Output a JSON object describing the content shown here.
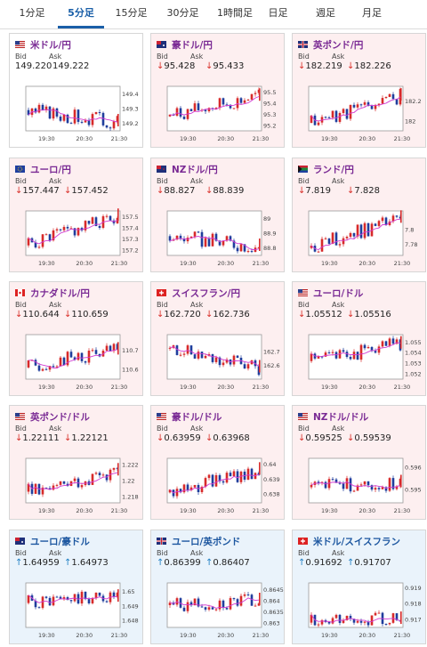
{
  "tabs": [
    "1分足",
    "5分足",
    "15分足",
    "30分足",
    "1時間足",
    "日足",
    "週足",
    "月足"
  ],
  "active_tab": 1,
  "labels": {
    "bid": "Bid",
    "ask": "Ask"
  },
  "colors": {
    "up_candle": "#d72a2a",
    "down_candle": "#1f3d9c",
    "ma_line": "#d23ad2",
    "down_bg": "#fdeff0",
    "up_bg": "#eaf3fb",
    "frame": "#9a9a9a"
  },
  "cards": [
    {
      "pair": "米ドル/円",
      "flag": "us-flag",
      "trend": "none",
      "bid": "149.220",
      "ask": "149.222",
      "chart_data": {
        "type": "candlestick",
        "x_ticks": [
          "19:30",
          "20:30",
          "21:30"
        ],
        "y_ticks": [
          "149.4",
          "149.3",
          "149.2"
        ],
        "ylim": [
          149.15,
          149.45
        ],
        "start": 149.29,
        "end": 149.21,
        "seed": 3
      }
    },
    {
      "pair": "豪ドル/円",
      "flag": "au-flag",
      "trend": "down",
      "bid": "95.428",
      "ask": "95.433",
      "chart_data": {
        "type": "candlestick",
        "x_ticks": [
          "19:30",
          "20:30",
          "21:30"
        ],
        "y_ticks": [
          "95.5",
          "95.4",
          "95.3",
          "95.2"
        ],
        "ylim": [
          95.15,
          95.55
        ],
        "start": 95.28,
        "end": 95.46,
        "seed": 7
      }
    },
    {
      "pair": "英ポンド/円",
      "flag": "gb-flag",
      "trend": "down",
      "bid": "182.219",
      "ask": "182.226",
      "chart_data": {
        "type": "candlestick",
        "x_ticks": [
          "19:30",
          "20:30",
          "21:30"
        ],
        "y_ticks": [
          "182.2",
          "182"
        ],
        "ylim": [
          181.9,
          182.35
        ],
        "start": 181.98,
        "end": 182.25,
        "seed": 11
      }
    },
    {
      "pair": "ユーロ/円",
      "flag": "eu-flag",
      "trend": "down",
      "bid": "157.447",
      "ask": "157.452",
      "chart_data": {
        "type": "candlestick",
        "x_ticks": [
          "19:30",
          "20:30",
          "21:30"
        ],
        "y_ticks": [
          "157.5",
          "157.4",
          "157.3",
          "157.2"
        ],
        "ylim": [
          157.15,
          157.55
        ],
        "start": 157.24,
        "end": 157.5,
        "seed": 5
      }
    },
    {
      "pair": "NZドル/円",
      "flag": "nz-flag",
      "trend": "down",
      "bid": "88.827",
      "ask": "88.839",
      "chart_data": {
        "type": "candlestick",
        "x_ticks": [
          "19:30",
          "20:30",
          "21:30"
        ],
        "y_ticks": [
          "89",
          "88.9",
          "88.8"
        ],
        "ylim": [
          88.75,
          89.05
        ],
        "start": 88.88,
        "end": 88.81,
        "seed": 9
      }
    },
    {
      "pair": "ランド/円",
      "flag": "za-flag",
      "trend": "down",
      "bid": "7.819",
      "ask": "7.828",
      "chart_data": {
        "type": "candlestick",
        "x_ticks": [
          "19:30",
          "20:30",
          "21:30"
        ],
        "y_ticks": [
          "7.8",
          "7.78"
        ],
        "ylim": [
          7.765,
          7.825
        ],
        "start": 7.775,
        "end": 7.815,
        "seed": 13
      }
    },
    {
      "pair": "カナダドル/円",
      "flag": "ca-flag",
      "trend": "down",
      "bid": "110.644",
      "ask": "110.659",
      "chart_data": {
        "type": "candlestick",
        "x_ticks": [
          "19:30",
          "20:30",
          "21:30"
        ],
        "y_ticks": [
          "110.7",
          "110.6"
        ],
        "ylim": [
          110.55,
          110.78
        ],
        "start": 110.61,
        "end": 110.7,
        "seed": 17
      }
    },
    {
      "pair": "スイスフラン/円",
      "flag": "ch-flag",
      "trend": "down",
      "bid": "162.720",
      "ask": "162.736",
      "chart_data": {
        "type": "candlestick",
        "x_ticks": [
          "19:30",
          "20:30",
          "21:30"
        ],
        "y_ticks": [
          "162.7",
          "162.6"
        ],
        "ylim": [
          162.5,
          162.82
        ],
        "start": 162.72,
        "end": 162.58,
        "seed": 19
      }
    },
    {
      "pair": "ユーロ/ドル",
      "flag": "eu-us-flag",
      "trend": "down",
      "bid": "1.05512",
      "ask": "1.05516",
      "chart_data": {
        "type": "candlestick",
        "x_ticks": [
          "19:30",
          "20:30",
          "21:30"
        ],
        "y_ticks": [
          "1.055",
          "1.054",
          "1.053",
          "1.052"
        ],
        "ylim": [
          1.0515,
          1.0557
        ],
        "start": 1.0532,
        "end": 1.0548,
        "seed": 23
      }
    },
    {
      "pair": "英ポンド/ドル",
      "flag": "gb-us-flag",
      "trend": "down",
      "bid": "1.22111",
      "ask": "1.22121",
      "chart_data": {
        "type": "candlestick",
        "x_ticks": [
          "19:30",
          "20:30",
          "21:30"
        ],
        "y_ticks": [
          "1.222",
          "1.22",
          "1.218"
        ],
        "ylim": [
          1.2172,
          1.2228
        ],
        "start": 1.2186,
        "end": 1.2212,
        "seed": 29
      }
    },
    {
      "pair": "豪ドル/ドル",
      "flag": "au-us-flag",
      "trend": "down",
      "bid": "0.63959",
      "ask": "0.63968",
      "chart_data": {
        "type": "candlestick",
        "x_ticks": [
          "19:30",
          "20:30",
          "21:30"
        ],
        "y_ticks": [
          "0.64",
          "0.639",
          "0.638"
        ],
        "ylim": [
          0.6374,
          0.6404
        ],
        "start": 0.6381,
        "end": 0.6396,
        "seed": 31
      }
    },
    {
      "pair": "NZドル/ドル",
      "flag": "nz-us-flag",
      "trend": "down",
      "bid": "0.59525",
      "ask": "0.59539",
      "chart_data": {
        "type": "candlestick",
        "x_ticks": [
          "19:30",
          "20:30",
          "21:30"
        ],
        "y_ticks": [
          "0.596",
          "0.595"
        ],
        "ylim": [
          0.5944,
          0.5964
        ],
        "start": 0.5951,
        "end": 0.5953,
        "seed": 37
      }
    },
    {
      "pair": "ユーロ/豪ドル",
      "flag": "eu-au-flag",
      "trend": "up",
      "bid": "1.64959",
      "ask": "1.64973",
      "chart_data": {
        "type": "candlestick",
        "x_ticks": [
          "19:30",
          "20:30",
          "21:30"
        ],
        "y_ticks": [
          "1.65",
          "1.649",
          "1.648"
        ],
        "ylim": [
          1.6475,
          1.6506
        ],
        "start": 1.6492,
        "end": 1.6496,
        "seed": 41
      }
    },
    {
      "pair": "ユーロ/英ポンド",
      "flag": "eu-gb-flag",
      "trend": "up",
      "bid": "0.86399",
      "ask": "0.86407",
      "chart_data": {
        "type": "candlestick",
        "x_ticks": [
          "19:30",
          "20:30",
          "21:30"
        ],
        "y_ticks": [
          "0.8645",
          "0.864",
          "0.8635",
          "0.863"
        ],
        "ylim": [
          0.8628,
          0.8648
        ],
        "start": 0.8638,
        "end": 0.864,
        "seed": 43
      }
    },
    {
      "pair": "米ドル/スイスフラン",
      "flag": "us-ch-flag",
      "trend": "up",
      "bid": "0.91692",
      "ask": "0.91707",
      "chart_data": {
        "type": "candlestick",
        "x_ticks": [
          "19:30",
          "20:30",
          "21:30"
        ],
        "y_ticks": [
          "0.919",
          "0.918",
          "0.917"
        ],
        "ylim": [
          0.9165,
          0.9193
        ],
        "start": 0.9168,
        "end": 0.917,
        "seed": 47
      }
    }
  ]
}
